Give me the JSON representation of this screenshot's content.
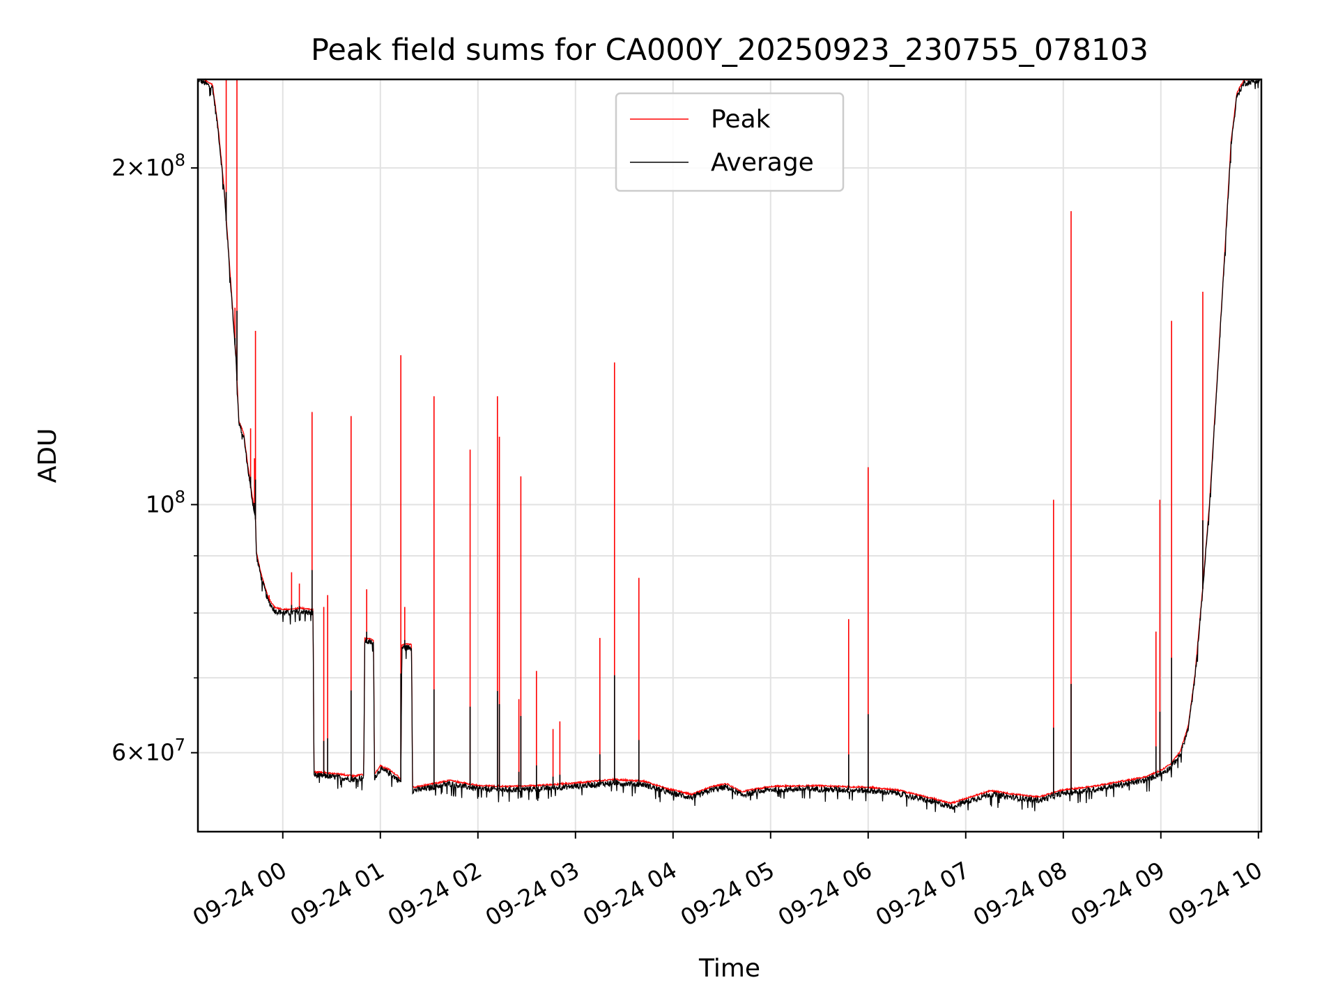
{
  "chart_data": {
    "type": "line",
    "title": "Peak field sums for CA000Y_20250923_230755_078103",
    "xlabel": "Time",
    "ylabel": "ADU",
    "yscale": "log",
    "ylim": [
      51000000,
      240000000
    ],
    "xlim_hours": [
      -0.87,
      10.03
    ],
    "grid": true,
    "legend_position": "upper-center",
    "x_ticks": [
      {
        "hour": 0,
        "label": "09-24 00"
      },
      {
        "hour": 1,
        "label": "09-24 01"
      },
      {
        "hour": 2,
        "label": "09-24 02"
      },
      {
        "hour": 3,
        "label": "09-24 03"
      },
      {
        "hour": 4,
        "label": "09-24 04"
      },
      {
        "hour": 5,
        "label": "09-24 05"
      },
      {
        "hour": 6,
        "label": "09-24 06"
      },
      {
        "hour": 7,
        "label": "09-24 07"
      },
      {
        "hour": 8,
        "label": "09-24 08"
      },
      {
        "hour": 9,
        "label": "09-24 09"
      },
      {
        "hour": 10,
        "label": "09-24 10"
      }
    ],
    "y_major_ticks": [
      {
        "value": 60000000,
        "mant": "6",
        "exp": "7"
      },
      {
        "value": 100000000,
        "mant": "",
        "exp": "8"
      },
      {
        "value": 200000000,
        "mant": "2",
        "exp": "8"
      }
    ],
    "y_minor_ticks": [
      70000000,
      80000000,
      90000000
    ],
    "series": [
      {
        "name": "Peak",
        "color": "#ff0000",
        "spikes": [
          {
            "h": -0.58,
            "v": 240000000
          },
          {
            "h": -0.47,
            "v": 240000000
          },
          {
            "h": -0.49,
            "v": 150000000
          },
          {
            "h": -0.33,
            "v": 117000000
          },
          {
            "h": -0.29,
            "v": 110000000
          },
          {
            "h": -0.28,
            "v": 143000000
          },
          {
            "h": -0.14,
            "v": 83000000
          },
          {
            "h": 0.09,
            "v": 87000000
          },
          {
            "h": 0.17,
            "v": 85000000
          },
          {
            "h": 0.3,
            "v": 121000000
          },
          {
            "h": 0.42,
            "v": 81000000
          },
          {
            "h": 0.46,
            "v": 83000000
          },
          {
            "h": 0.7,
            "v": 120000000
          },
          {
            "h": 0.86,
            "v": 84000000
          },
          {
            "h": 1.21,
            "v": 136000000
          },
          {
            "h": 1.25,
            "v": 81000000
          },
          {
            "h": 1.55,
            "v": 125000000
          },
          {
            "h": 1.92,
            "v": 112000000
          },
          {
            "h": 2.2,
            "v": 125000000
          },
          {
            "h": 2.22,
            "v": 115000000
          },
          {
            "h": 2.42,
            "v": 67000000
          },
          {
            "h": 2.44,
            "v": 106000000
          },
          {
            "h": 2.6,
            "v": 71000000
          },
          {
            "h": 2.77,
            "v": 63000000
          },
          {
            "h": 2.84,
            "v": 64000000
          },
          {
            "h": 3.25,
            "v": 76000000
          },
          {
            "h": 3.4,
            "v": 134000000
          },
          {
            "h": 3.65,
            "v": 86000000
          },
          {
            "h": 5.8,
            "v": 79000000
          },
          {
            "h": 6.0,
            "v": 108000000
          },
          {
            "h": 7.9,
            "v": 101000000
          },
          {
            "h": 8.08,
            "v": 183000000
          },
          {
            "h": 8.95,
            "v": 77000000
          },
          {
            "h": 8.99,
            "v": 101000000
          },
          {
            "h": 9.11,
            "v": 146000000
          },
          {
            "h": 9.43,
            "v": 155000000
          }
        ]
      },
      {
        "name": "Average",
        "color": "#000000",
        "baseline": [
          {
            "h": -0.87,
            "v": 240000000
          },
          {
            "h": -0.72,
            "v": 236000000
          },
          {
            "h": -0.66,
            "v": 215000000
          },
          {
            "h": -0.6,
            "v": 190000000
          },
          {
            "h": -0.54,
            "v": 160000000
          },
          {
            "h": -0.48,
            "v": 135000000
          },
          {
            "h": -0.45,
            "v": 118000000
          },
          {
            "h": -0.4,
            "v": 115000000
          },
          {
            "h": -0.36,
            "v": 108000000
          },
          {
            "h": -0.32,
            "v": 102000000
          },
          {
            "h": -0.28,
            "v": 97000000
          },
          {
            "h": -0.27,
            "v": 90000000
          },
          {
            "h": -0.22,
            "v": 86000000
          },
          {
            "h": -0.15,
            "v": 82000000
          },
          {
            "h": -0.08,
            "v": 80300000
          },
          {
            "h": 0.05,
            "v": 80000000
          },
          {
            "h": 0.18,
            "v": 80300000
          },
          {
            "h": 0.31,
            "v": 80000000
          },
          {
            "h": 0.32,
            "v": 57300000
          },
          {
            "h": 0.6,
            "v": 57000000
          },
          {
            "h": 0.72,
            "v": 56800000
          },
          {
            "h": 0.83,
            "v": 57000000
          },
          {
            "h": 0.84,
            "v": 75500000
          },
          {
            "h": 0.93,
            "v": 75200000
          },
          {
            "h": 0.94,
            "v": 57000000
          },
          {
            "h": 1.0,
            "v": 58000000
          },
          {
            "h": 1.1,
            "v": 57500000
          },
          {
            "h": 1.21,
            "v": 56500000
          },
          {
            "h": 1.22,
            "v": 74500000
          },
          {
            "h": 1.32,
            "v": 74500000
          },
          {
            "h": 1.33,
            "v": 55500000
          },
          {
            "h": 1.5,
            "v": 55800000
          },
          {
            "h": 1.7,
            "v": 56300000
          },
          {
            "h": 2.0,
            "v": 55700000
          },
          {
            "h": 2.3,
            "v": 55600000
          },
          {
            "h": 2.6,
            "v": 55700000
          },
          {
            "h": 3.0,
            "v": 56000000
          },
          {
            "h": 3.4,
            "v": 56400000
          },
          {
            "h": 3.7,
            "v": 56200000
          },
          {
            "h": 3.95,
            "v": 55300000
          },
          {
            "h": 4.2,
            "v": 54700000
          },
          {
            "h": 4.4,
            "v": 55600000
          },
          {
            "h": 4.55,
            "v": 55900000
          },
          {
            "h": 4.7,
            "v": 55000000
          },
          {
            "h": 4.85,
            "v": 55300000
          },
          {
            "h": 5.0,
            "v": 55600000
          },
          {
            "h": 5.4,
            "v": 55700000
          },
          {
            "h": 5.7,
            "v": 55600000
          },
          {
            "h": 6.0,
            "v": 55500000
          },
          {
            "h": 6.3,
            "v": 55200000
          },
          {
            "h": 6.6,
            "v": 54400000
          },
          {
            "h": 6.85,
            "v": 53700000
          },
          {
            "h": 7.05,
            "v": 54400000
          },
          {
            "h": 7.25,
            "v": 55100000
          },
          {
            "h": 7.5,
            "v": 54700000
          },
          {
            "h": 7.75,
            "v": 54400000
          },
          {
            "h": 8.0,
            "v": 55200000
          },
          {
            "h": 8.3,
            "v": 55600000
          },
          {
            "h": 8.6,
            "v": 56200000
          },
          {
            "h": 8.85,
            "v": 56700000
          },
          {
            "h": 9.0,
            "v": 57500000
          },
          {
            "h": 9.1,
            "v": 58200000
          },
          {
            "h": 9.2,
            "v": 59800000
          },
          {
            "h": 9.28,
            "v": 63000000
          },
          {
            "h": 9.35,
            "v": 70000000
          },
          {
            "h": 9.42,
            "v": 82000000
          },
          {
            "h": 9.5,
            "v": 100000000
          },
          {
            "h": 9.58,
            "v": 130000000
          },
          {
            "h": 9.66,
            "v": 170000000
          },
          {
            "h": 9.72,
            "v": 210000000
          },
          {
            "h": 9.78,
            "v": 232000000
          },
          {
            "h": 9.85,
            "v": 238000000
          },
          {
            "h": 10.03,
            "v": 240000000
          }
        ]
      }
    ]
  }
}
